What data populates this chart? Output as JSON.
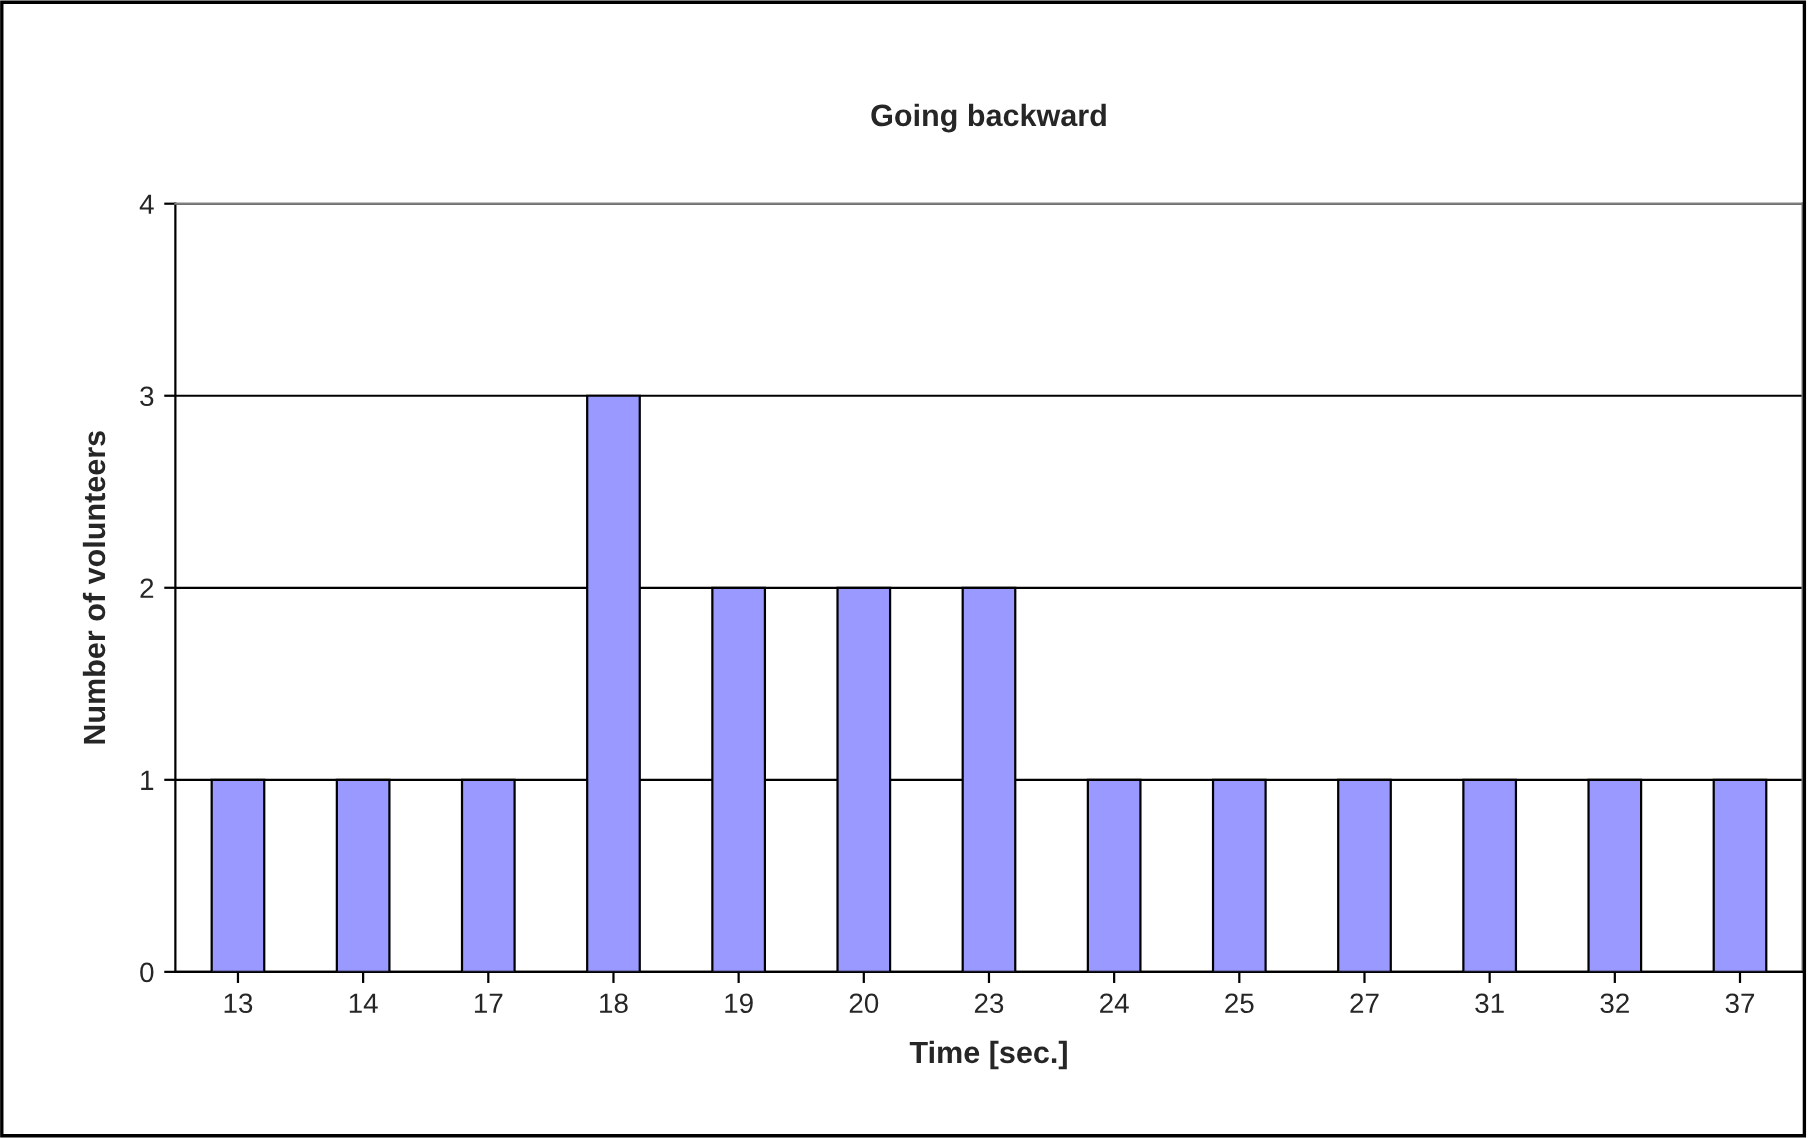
{
  "chart_data": {
    "type": "bar",
    "title": "Going backward",
    "xlabel": "Time [sec.]",
    "ylabel": "Number of volunteers",
    "categories": [
      "13",
      "14",
      "17",
      "18",
      "19",
      "20",
      "23",
      "24",
      "25",
      "27",
      "31",
      "32",
      "37"
    ],
    "values": [
      1,
      1,
      1,
      3,
      2,
      2,
      2,
      1,
      1,
      1,
      1,
      1,
      1
    ],
    "color": "#9999ff",
    "ylim": [
      0,
      4
    ],
    "yticks": [
      0,
      1,
      2,
      3,
      4
    ],
    "grid": "y"
  }
}
